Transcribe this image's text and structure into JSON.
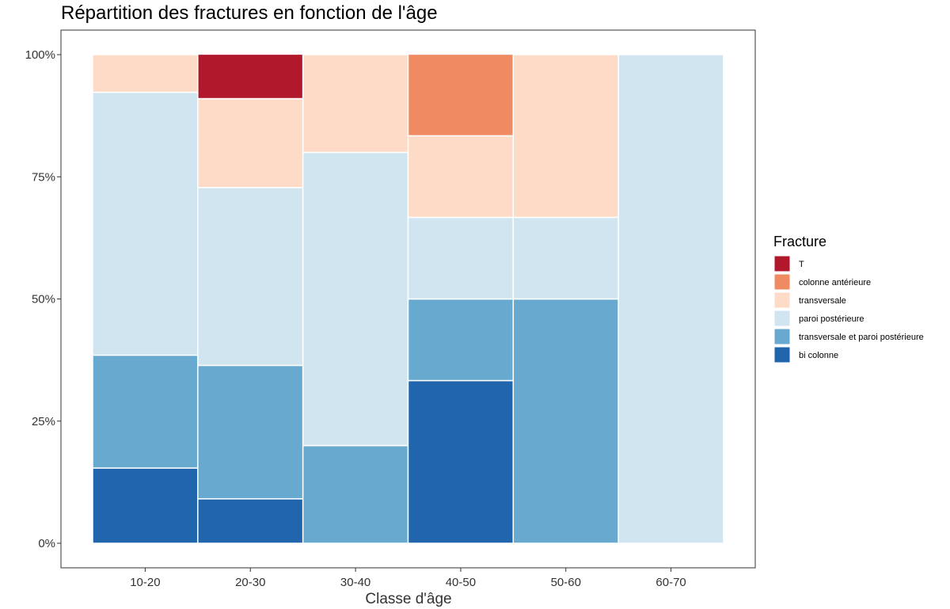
{
  "chart_data": {
    "type": "bar",
    "stacked": true,
    "normalized": true,
    "title": "Répartition des fractures en fonction de l'âge",
    "xlabel": "Classe d'âge",
    "ylabel": "",
    "ylim": [
      0,
      1
    ],
    "yticks": [
      "0%",
      "25%",
      "50%",
      "75%",
      "100%"
    ],
    "categories": [
      "10-20",
      "20-30",
      "30-40",
      "40-50",
      "50-60",
      "60-70"
    ],
    "legend_title": "Fracture",
    "legend_position": "right",
    "grid": false,
    "series": [
      {
        "name": "bi colonne",
        "color": "#2166AC",
        "values": [
          0.154,
          0.091,
          0,
          0.333,
          0,
          0
        ]
      },
      {
        "name": "transversale et paroi postérieure",
        "color": "#67A9CF",
        "values": [
          0.231,
          0.273,
          0.2,
          0.167,
          0.5,
          0
        ]
      },
      {
        "name": "paroi postérieure",
        "color": "#D1E5F0",
        "values": [
          0.538,
          0.364,
          0.6,
          0.167,
          0.167,
          1.0
        ]
      },
      {
        "name": "transversale",
        "color": "#FDDBC7",
        "values": [
          0.077,
          0.182,
          0.2,
          0.167,
          0.333,
          0
        ]
      },
      {
        "name": "colonne antérieure",
        "color": "#EF8A62",
        "values": [
          0,
          0,
          0,
          0.167,
          0,
          0
        ]
      },
      {
        "name": "T",
        "color": "#B2182B",
        "values": [
          0,
          0.091,
          0,
          0,
          0,
          0
        ]
      }
    ],
    "legend_order": [
      "T",
      "colonne antérieure",
      "transversale",
      "paroi postérieure",
      "transversale et paroi postérieure",
      "bi colonne"
    ]
  }
}
